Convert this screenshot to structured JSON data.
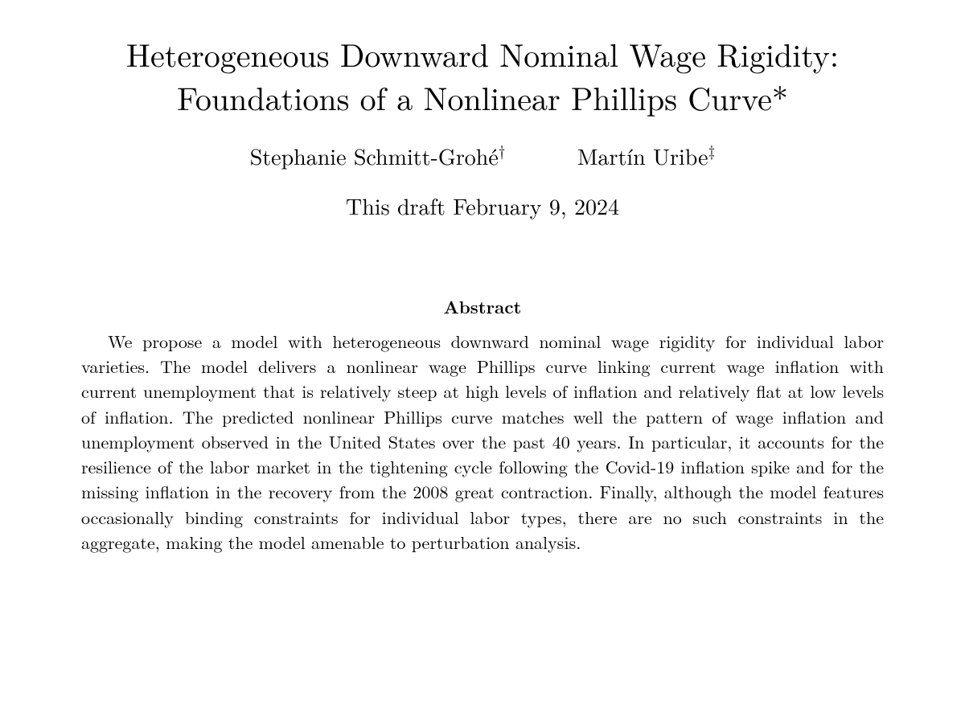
{
  "title": {
    "line1": "Heterogeneous Downward Nominal Wage Rigidity:",
    "line2": "Foundations of a Nonlinear Phillips Curve*"
  },
  "authors": [
    {
      "name": "Stephanie Schmitt-Grohé",
      "marker": "†"
    },
    {
      "name": "Martín Uribe",
      "marker": "‡"
    }
  ],
  "date": "This draft February 9, 2024",
  "abstract": {
    "heading": "Abstract",
    "body": "We propose a model with heterogeneous downward nominal wage rigidity for individual labor varieties. The model delivers a nonlinear wage Phillips curve linking current wage inflation with current unemployment that is relatively steep at high levels of inflation and relatively flat at low levels of inflation. The predicted nonlinear Phillips curve matches well the pattern of wage inflation and unemployment observed in the United States over the past 40 years. In particular, it accounts for the resilience of the labor market in the tightening cycle following the Covid-19 inflation spike and for the missing inflation in the recovery from the 2008 great contraction. Finally, although the model features occasionally binding constraints for individual labor types, there are no such constraints in the aggregate, making the model amenable to perturbation analysis."
  },
  "style": {
    "background_color": "#ffffff",
    "text_color": "#000000",
    "title_fontsize": 40,
    "author_fontsize": 28,
    "date_fontsize": 28,
    "abstract_heading_fontsize": 22,
    "abstract_body_fontsize": 22,
    "font_family": "Computer Modern / Latin Modern (serif)",
    "title_weight": 400,
    "abstract_heading_weight": 700
  }
}
